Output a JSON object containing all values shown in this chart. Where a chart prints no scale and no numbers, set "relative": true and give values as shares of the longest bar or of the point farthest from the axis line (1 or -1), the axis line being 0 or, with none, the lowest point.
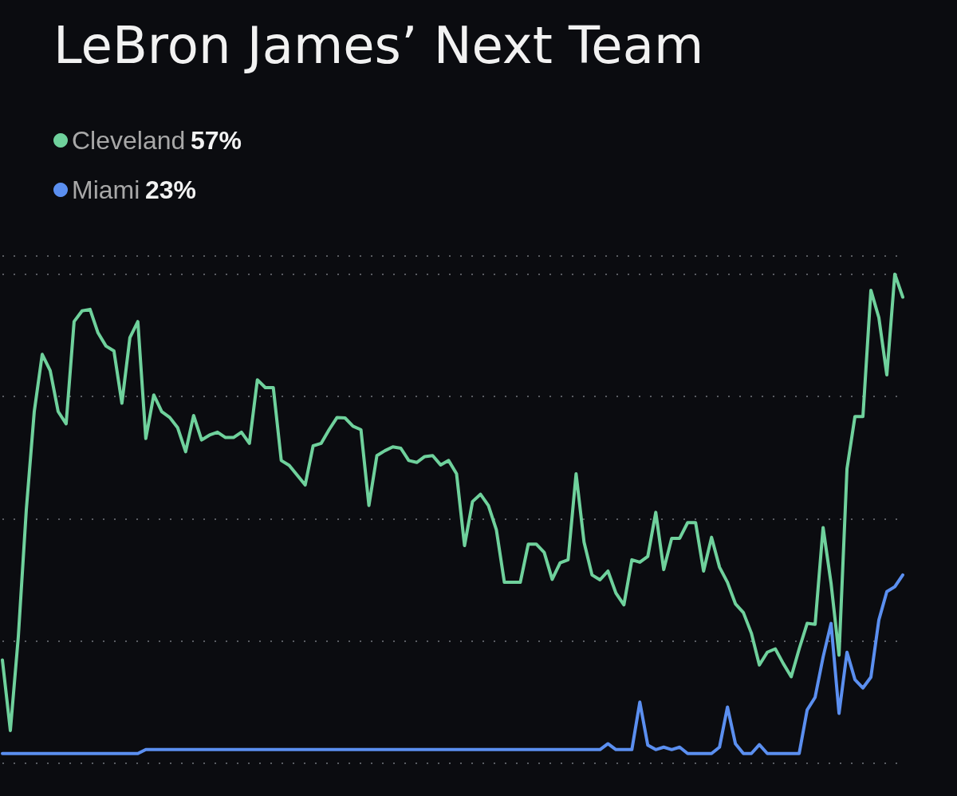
{
  "chart_data": {
    "type": "line",
    "title": "LeBron James’ Next Team",
    "relative": true,
    "annotations": [
      "57%",
      "23%"
    ],
    "categories": [
      null,
      null,
      null,
      null,
      null,
      null,
      null,
      null,
      null,
      null,
      null,
      null,
      null,
      null,
      null,
      null,
      null,
      null,
      null,
      null,
      null,
      null,
      null,
      null,
      null,
      null,
      null,
      null,
      null,
      null,
      null,
      null,
      null,
      null,
      null,
      null,
      null,
      null,
      null,
      null,
      null,
      null,
      null,
      null,
      null,
      null,
      null,
      null,
      null,
      null,
      null,
      null,
      null,
      null,
      null,
      null,
      null,
      null,
      null,
      null,
      null,
      null,
      null,
      null,
      null,
      null,
      null,
      null,
      null,
      null,
      null,
      null,
      null,
      null,
      null,
      null,
      null,
      null,
      null,
      null,
      null,
      null,
      null,
      null,
      null,
      null,
      null,
      null,
      null,
      null,
      null,
      null,
      null,
      null,
      null,
      null,
      null,
      null,
      null,
      null,
      null,
      null,
      null,
      null,
      null,
      null,
      null,
      null,
      null,
      null,
      null,
      null,
      null,
      null
    ],
    "series": [
      {
        "name": "Cleveland",
        "color": "#6fd19c",
        "values": [
          0.211,
          0.067,
          0.259,
          0.518,
          0.719,
          0.836,
          0.803,
          0.719,
          0.694,
          0.903,
          0.925,
          0.928,
          0.88,
          0.853,
          0.843,
          0.736,
          0.87,
          0.903,
          0.664,
          0.753,
          0.719,
          0.707,
          0.686,
          0.637,
          0.711,
          0.661,
          0.671,
          0.677,
          0.666,
          0.666,
          0.677,
          0.654,
          0.784,
          0.768,
          0.768,
          0.619,
          0.609,
          0.589,
          0.569,
          0.649,
          0.654,
          0.682,
          0.707,
          0.706,
          0.689,
          0.682,
          0.527,
          0.629,
          0.639,
          0.647,
          0.644,
          0.619,
          0.615,
          0.627,
          0.629,
          0.61,
          0.619,
          0.592,
          0.445,
          0.535,
          0.55,
          0.527,
          0.477,
          0.37,
          0.37,
          0.37,
          0.448,
          0.448,
          0.431,
          0.376,
          0.41,
          0.416,
          0.592,
          0.452,
          0.385,
          0.375,
          0.393,
          0.348,
          0.324,
          0.416,
          0.411,
          0.423,
          0.513,
          0.396,
          0.46,
          0.46,
          0.492,
          0.492,
          0.393,
          0.462,
          0.401,
          0.37,
          0.326,
          0.308,
          0.266,
          0.201,
          0.227,
          0.234,
          0.204,
          0.177,
          0.234,
          0.286,
          0.284,
          0.482,
          0.368,
          0.221,
          0.602,
          0.709,
          0.709,
          0.967,
          0.911,
          0.794,
          1,
          0.953
        ]
      },
      {
        "name": "Miami",
        "color": "#5b8ff0",
        "values": [
          0.02,
          0.02,
          0.02,
          0.02,
          0.02,
          0.02,
          0.02,
          0.02,
          0.02,
          0.02,
          0.02,
          0.02,
          0.02,
          0.02,
          0.02,
          0.02,
          0.02,
          0.02,
          0.028,
          0.028,
          0.028,
          0.028,
          0.028,
          0.028,
          0.028,
          0.028,
          0.028,
          0.028,
          0.028,
          0.028,
          0.028,
          0.028,
          0.028,
          0.028,
          0.028,
          0.028,
          0.028,
          0.028,
          0.028,
          0.028,
          0.028,
          0.028,
          0.028,
          0.028,
          0.028,
          0.028,
          0.028,
          0.028,
          0.028,
          0.028,
          0.028,
          0.028,
          0.028,
          0.028,
          0.028,
          0.028,
          0.028,
          0.028,
          0.028,
          0.028,
          0.028,
          0.028,
          0.028,
          0.028,
          0.028,
          0.028,
          0.028,
          0.028,
          0.028,
          0.028,
          0.028,
          0.028,
          0.028,
          0.028,
          0.028,
          0.028,
          0.04,
          0.028,
          0.028,
          0.028,
          0.125,
          0.037,
          0.028,
          0.033,
          0.028,
          0.033,
          0.02,
          0.02,
          0.02,
          0.02,
          0.033,
          0.115,
          0.04,
          0.02,
          0.02,
          0.038,
          0.02,
          0.02,
          0.02,
          0.02,
          0.02,
          0.109,
          0.135,
          0.217,
          0.286,
          0.102,
          0.227,
          0.171,
          0.154,
          0.176,
          0.293,
          0.351,
          0.361,
          0.385
        ]
      }
    ],
    "grid": "y",
    "legend": "top left",
    "line_style": "solid"
  }
}
